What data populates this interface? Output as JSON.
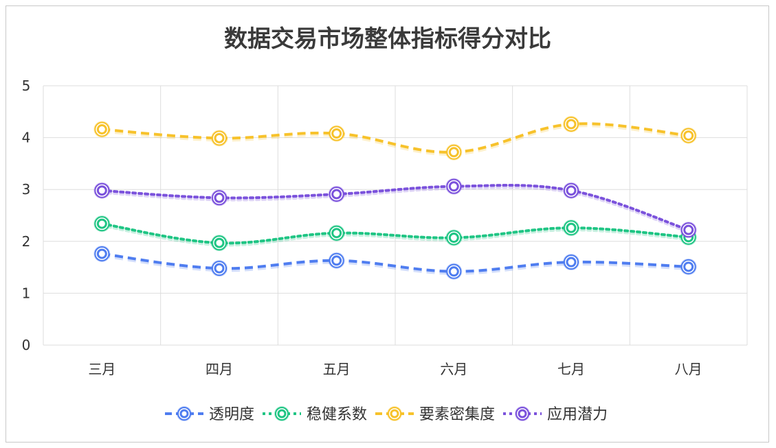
{
  "chart_data": {
    "type": "line",
    "title": "数据交易市场整体指标得分对比",
    "categories": [
      "三月",
      "四月",
      "五月",
      "六月",
      "七月",
      "八月"
    ],
    "ylim": [
      0,
      5
    ],
    "yticks": [
      "0",
      "1",
      "2",
      "3",
      "4",
      "5"
    ],
    "grid": true,
    "legend_position": "bottom",
    "series": [
      {
        "name": "透明度",
        "values": [
          1.76,
          1.48,
          1.63,
          1.42,
          1.6,
          1.51
        ],
        "color": "#4f7df0",
        "dash": "dashed"
      },
      {
        "name": "稳健系数",
        "values": [
          2.34,
          1.97,
          2.16,
          2.07,
          2.26,
          2.08
        ],
        "color": "#1fc584",
        "dash": "dotted"
      },
      {
        "name": "要素密集度",
        "values": [
          4.16,
          3.99,
          4.08,
          3.72,
          4.26,
          4.04
        ],
        "color": "#f7c22b",
        "dash": "dashed"
      },
      {
        "name": "应用潜力",
        "values": [
          2.98,
          2.84,
          2.91,
          3.06,
          2.98,
          2.22
        ],
        "color": "#7b52dc",
        "dash": "dotted"
      }
    ]
  }
}
